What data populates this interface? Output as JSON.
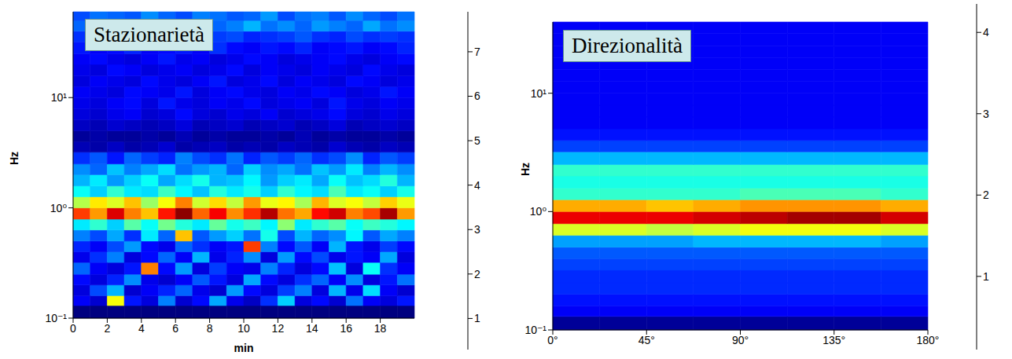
{
  "chart_data": [
    {
      "type": "heatmap",
      "title": "Stazionarietà",
      "x_label": "min",
      "y_label": "Hz",
      "log": "y",
      "xlim": [
        0,
        20
      ],
      "xticks": [
        0,
        2,
        4,
        6,
        8,
        10,
        12,
        14,
        16,
        18
      ],
      "ylim": [
        0.1,
        60
      ],
      "yticks": [
        {
          "value": 0.1,
          "label": "10⁻¹"
        },
        {
          "value": 1,
          "label": "10⁰"
        },
        {
          "value": 10,
          "label": "10¹"
        }
      ],
      "x_edges": [
        0,
        1,
        2,
        3,
        4,
        5,
        6,
        7,
        8,
        9,
        10,
        11,
        12,
        13,
        14,
        15,
        16,
        17,
        18,
        19,
        20
      ],
      "y_edges": [
        0.1,
        0.13,
        0.16,
        0.2,
        0.25,
        0.32,
        0.4,
        0.5,
        0.63,
        0.79,
        1.0,
        1.26,
        1.58,
        2.0,
        2.5,
        3.2,
        4.0,
        5.0,
        6.3,
        7.9,
        10,
        12.6,
        15.8,
        20,
        25,
        32,
        40,
        50,
        60
      ],
      "cells": [
        [
          0.3,
          0.3,
          0.3,
          0.3,
          0.3,
          0.3,
          0.3,
          0.3,
          0.3,
          0.3,
          0.3,
          0.3,
          0.3,
          0.3,
          0.3,
          0.3,
          0.3,
          0.3,
          0.3,
          0.3
        ],
        [
          1.2,
          0.9,
          5.0,
          1.4,
          1.0,
          2.2,
          0.9,
          1.3,
          2.5,
          1.1,
          0.8,
          1.6,
          2.8,
          1.0,
          1.3,
          0.9,
          2.1,
          1.2,
          1.0,
          1.4
        ],
        [
          1.0,
          1.8,
          2.6,
          0.9,
          1.2,
          1.5,
          2.0,
          1.1,
          0.9,
          2.4,
          1.3,
          1.0,
          1.7,
          2.2,
          1.0,
          2.6,
          1.1,
          2.9,
          1.2,
          0.9
        ],
        [
          1.3,
          1.0,
          1.5,
          2.3,
          1.1,
          0.9,
          1.2,
          1.9,
          1.4,
          1.0,
          2.5,
          1.3,
          1.0,
          1.6,
          2.0,
          1.2,
          2.3,
          1.0,
          1.4,
          2.1
        ],
        [
          2.0,
          1.2,
          1.0,
          1.4,
          6.0,
          1.3,
          2.4,
          1.0,
          1.7,
          1.2,
          1.1,
          2.2,
          1.5,
          1.0,
          1.3,
          2.7,
          1.0,
          3.2,
          1.6,
          1.2
        ],
        [
          1.1,
          1.6,
          2.2,
          1.0,
          1.3,
          2.0,
          1.2,
          2.6,
          1.1,
          1.5,
          2.3,
          1.0,
          2.4,
          1.3,
          1.8,
          1.1,
          1.4,
          1.2,
          2.5,
          1.0
        ],
        [
          1.5,
          1.2,
          1.8,
          2.4,
          1.3,
          1.1,
          2.0,
          1.6,
          1.2,
          1.4,
          6.5,
          2.2,
          1.3,
          1.9,
          1.2,
          2.6,
          1.4,
          1.1,
          1.7,
          1.3
        ],
        [
          2.2,
          1.8,
          2.5,
          1.6,
          3.0,
          2.0,
          5.5,
          1.9,
          2.4,
          2.8,
          2.1,
          3.3,
          1.8,
          2.6,
          2.0,
          2.3,
          3.1,
          1.9,
          2.5,
          2.2
        ],
        [
          3.0,
          3.5,
          2.8,
          3.8,
          3.2,
          4.0,
          3.4,
          3.0,
          3.9,
          3.3,
          3.6,
          3.1,
          4.2,
          3.0,
          3.5,
          3.8,
          3.2,
          3.6,
          3.4,
          3.1
        ],
        [
          6.5,
          5.8,
          7.2,
          6.0,
          5.5,
          6.8,
          7.8,
          6.2,
          7.0,
          5.9,
          6.6,
          7.5,
          6.1,
          5.7,
          6.9,
          7.3,
          6.0,
          6.4,
          7.6,
          5.8
        ],
        [
          4.5,
          5.2,
          4.8,
          5.5,
          4.3,
          5.0,
          6.0,
          4.7,
          5.3,
          4.6,
          5.8,
          4.9,
          5.1,
          4.4,
          5.6,
          4.8,
          5.0,
          4.6,
          5.4,
          4.9
        ],
        [
          3.2,
          2.8,
          3.5,
          3.0,
          2.9,
          3.6,
          3.1,
          2.7,
          3.4,
          3.0,
          3.3,
          2.8,
          3.5,
          3.1,
          2.9,
          3.7,
          3.0,
          3.2,
          2.8,
          3.3
        ],
        [
          2.6,
          3.0,
          2.4,
          2.8,
          3.2,
          2.5,
          2.9,
          3.3,
          2.6,
          2.7,
          3.1,
          2.4,
          2.8,
          3.0,
          2.5,
          3.2,
          2.7,
          2.9,
          3.4,
          2.6
        ],
        [
          2.3,
          2.0,
          2.7,
          2.2,
          2.5,
          2.9,
          2.1,
          2.4,
          2.6,
          2.0,
          2.8,
          2.3,
          2.5,
          2.1,
          2.7,
          2.4,
          3.0,
          2.2,
          2.6,
          2.3
        ],
        [
          1.6,
          1.9,
          1.4,
          2.0,
          1.7,
          1.5,
          2.2,
          1.8,
          1.6,
          2.1,
          1.5,
          1.9,
          1.7,
          2.0,
          1.6,
          1.8,
          2.3,
          1.5,
          1.9,
          1.7
        ],
        [
          0.7,
          0.6,
          0.8,
          0.6,
          0.7,
          0.9,
          0.6,
          0.7,
          0.8,
          0.6,
          0.7,
          0.6,
          0.8,
          0.7,
          0.6,
          0.9,
          0.7,
          0.6,
          0.8,
          0.7
        ],
        [
          0.5,
          0.6,
          0.5,
          0.5,
          0.6,
          0.5,
          0.7,
          0.5,
          0.6,
          0.5,
          0.5,
          0.6,
          0.5,
          0.7,
          0.5,
          0.6,
          0.5,
          0.5,
          0.6,
          0.5
        ],
        [
          0.8,
          0.7,
          0.9,
          0.8,
          0.7,
          0.8,
          1.0,
          0.7,
          0.8,
          0.9,
          0.7,
          0.8,
          0.9,
          0.7,
          0.8,
          1.0,
          0.7,
          0.8,
          0.9,
          0.8
        ],
        [
          1.0,
          0.9,
          1.1,
          1.2,
          0.9,
          1.0,
          1.3,
          1.0,
          0.9,
          1.1,
          1.0,
          1.2,
          0.9,
          1.0,
          1.1,
          1.3,
          1.0,
          0.9,
          1.1,
          1.0
        ],
        [
          1.1,
          1.0,
          1.2,
          1.3,
          1.0,
          1.4,
          1.1,
          1.0,
          1.2,
          1.1,
          1.3,
          1.0,
          1.1,
          1.2,
          1.0,
          1.4,
          1.1,
          1.0,
          1.2,
          1.1
        ],
        [
          1.2,
          1.1,
          1.0,
          1.3,
          1.2,
          1.1,
          1.4,
          1.0,
          1.2,
          1.3,
          1.1,
          1.0,
          1.2,
          1.1,
          1.3,
          1.2,
          1.0,
          1.1,
          1.4,
          1.2
        ],
        [
          1.0,
          1.2,
          1.1,
          1.0,
          1.3,
          1.1,
          1.0,
          1.2,
          1.4,
          1.0,
          1.1,
          1.3,
          1.0,
          1.2,
          1.1,
          1.0,
          1.3,
          1.2,
          1.0,
          1.1
        ],
        [
          1.1,
          1.0,
          1.3,
          1.2,
          1.0,
          1.1,
          1.2,
          1.0,
          1.1,
          1.3,
          1.0,
          1.2,
          1.1,
          1.0,
          1.2,
          1.1,
          1.0,
          1.3,
          1.1,
          1.0
        ],
        [
          1.2,
          1.3,
          1.1,
          1.0,
          1.2,
          1.4,
          1.1,
          1.2,
          1.0,
          1.1,
          1.3,
          1.2,
          1.0,
          1.1,
          1.2,
          1.3,
          1.1,
          1.0,
          1.2,
          1.3
        ],
        [
          1.4,
          1.2,
          1.3,
          1.5,
          1.2,
          1.3,
          1.4,
          1.2,
          1.6,
          1.3,
          1.2,
          1.4,
          1.3,
          1.5,
          1.2,
          1.3,
          1.4,
          1.2,
          1.3,
          1.5
        ],
        [
          1.6,
          1.5,
          1.8,
          1.6,
          1.7,
          1.5,
          1.9,
          1.6,
          1.7,
          1.8,
          1.5,
          1.6,
          1.7,
          1.9,
          1.6,
          1.5,
          1.8,
          1.6,
          1.7,
          1.6
        ],
        [
          2.0,
          2.3,
          1.9,
          2.2,
          2.5,
          2.0,
          2.1,
          2.4,
          2.0,
          2.2,
          2.6,
          2.1,
          2.3,
          2.0,
          2.4,
          2.2,
          2.0,
          2.5,
          2.1,
          2.3
        ],
        [
          1.8,
          2.1,
          2.0,
          1.9,
          2.3,
          2.0,
          1.8,
          2.2,
          2.1,
          1.9,
          2.0,
          2.4,
          1.8,
          2.1,
          2.2,
          1.9,
          2.3,
          2.0,
          1.8,
          2.1
        ]
      ],
      "colorbar": {
        "range": [
          0.3,
          7.9
        ],
        "ticks": [
          1,
          2,
          3,
          4,
          5,
          6,
          7
        ]
      }
    },
    {
      "type": "heatmap",
      "title": "Direzionalità",
      "y_label": "Hz",
      "log": "y",
      "xlim": [
        0,
        180
      ],
      "xticks": [
        {
          "value": 0,
          "label": "0°"
        },
        {
          "value": 45,
          "label": "45°"
        },
        {
          "value": 90,
          "label": "90°"
        },
        {
          "value": 135,
          "label": "135°"
        },
        {
          "value": 180,
          "label": "180°"
        }
      ],
      "ylim": [
        0.1,
        40
      ],
      "yticks": [
        {
          "value": 0.1,
          "label": "10⁻¹"
        },
        {
          "value": 1,
          "label": "10⁰"
        },
        {
          "value": 10,
          "label": "10¹"
        }
      ],
      "x_edges": [
        0,
        22.5,
        45,
        67.5,
        90,
        112.5,
        135,
        157.5,
        180
      ],
      "y_edges": [
        0.1,
        0.13,
        0.16,
        0.2,
        0.25,
        0.32,
        0.4,
        0.5,
        0.63,
        0.79,
        1.0,
        1.26,
        1.58,
        2.0,
        2.5,
        3.2,
        4.0,
        5.0,
        6.3,
        7.9,
        10,
        12.6,
        15.8,
        20,
        25,
        32,
        40
      ],
      "cells": [
        [
          0.2,
          0.2,
          0.2,
          0.2,
          0.2,
          0.2,
          0.2,
          0.2
        ],
        [
          0.6,
          0.6,
          0.6,
          0.6,
          0.6,
          0.6,
          0.6,
          0.6
        ],
        [
          0.7,
          0.7,
          0.7,
          0.7,
          0.7,
          0.7,
          0.7,
          0.7
        ],
        [
          0.8,
          0.8,
          0.8,
          0.8,
          0.8,
          0.8,
          0.8,
          0.8
        ],
        [
          0.8,
          0.8,
          0.8,
          0.8,
          0.8,
          0.8,
          0.8,
          0.8
        ],
        [
          0.9,
          0.9,
          0.9,
          0.9,
          0.9,
          0.9,
          0.9,
          0.9
        ],
        [
          1.0,
          1.0,
          1.0,
          1.0,
          1.0,
          1.0,
          1.0,
          1.0
        ],
        [
          1.3,
          1.3,
          1.3,
          1.4,
          1.4,
          1.4,
          1.4,
          1.3
        ],
        [
          2.6,
          2.6,
          2.5,
          2.6,
          2.7,
          2.7,
          2.7,
          2.6
        ],
        [
          3.9,
          3.9,
          3.9,
          4.0,
          4.1,
          4.2,
          4.2,
          4.0
        ],
        [
          3.1,
          3.1,
          3.0,
          3.1,
          3.2,
          3.2,
          3.2,
          3.1
        ],
        [
          1.9,
          1.9,
          1.9,
          1.9,
          2.0,
          2.0,
          2.0,
          1.9
        ],
        [
          1.8,
          1.8,
          1.8,
          1.8,
          1.8,
          1.8,
          1.8,
          1.8
        ],
        [
          1.9,
          1.9,
          1.9,
          1.9,
          1.9,
          1.9,
          1.9,
          1.9
        ],
        [
          1.4,
          1.4,
          1.4,
          1.4,
          1.4,
          1.4,
          1.4,
          1.4
        ],
        [
          0.9,
          0.9,
          0.9,
          0.9,
          0.9,
          0.9,
          0.9,
          0.9
        ],
        [
          0.7,
          0.7,
          0.7,
          0.7,
          0.7,
          0.7,
          0.7,
          0.7
        ],
        [
          0.6,
          0.6,
          0.6,
          0.6,
          0.6,
          0.6,
          0.6,
          0.6
        ],
        [
          0.6,
          0.6,
          0.6,
          0.6,
          0.6,
          0.6,
          0.6,
          0.6
        ],
        [
          0.6,
          0.6,
          0.6,
          0.6,
          0.6,
          0.6,
          0.6,
          0.6
        ],
        [
          0.6,
          0.6,
          0.6,
          0.6,
          0.6,
          0.6,
          0.6,
          0.6
        ],
        [
          0.6,
          0.6,
          0.6,
          0.6,
          0.6,
          0.6,
          0.6,
          0.6
        ],
        [
          0.6,
          0.6,
          0.6,
          0.6,
          0.6,
          0.6,
          0.6,
          0.6
        ],
        [
          0.6,
          0.6,
          0.6,
          0.6,
          0.6,
          0.6,
          0.6,
          0.6
        ],
        [
          0.6,
          0.6,
          0.6,
          0.6,
          0.6,
          0.6,
          0.6,
          0.6
        ],
        [
          0.6,
          0.6,
          0.6,
          0.6,
          0.6,
          0.6,
          0.6,
          0.6
        ]
      ],
      "colorbar": {
        "range": [
          0.1,
          4.35
        ],
        "ticks": [
          1,
          2,
          3,
          4
        ]
      }
    }
  ]
}
